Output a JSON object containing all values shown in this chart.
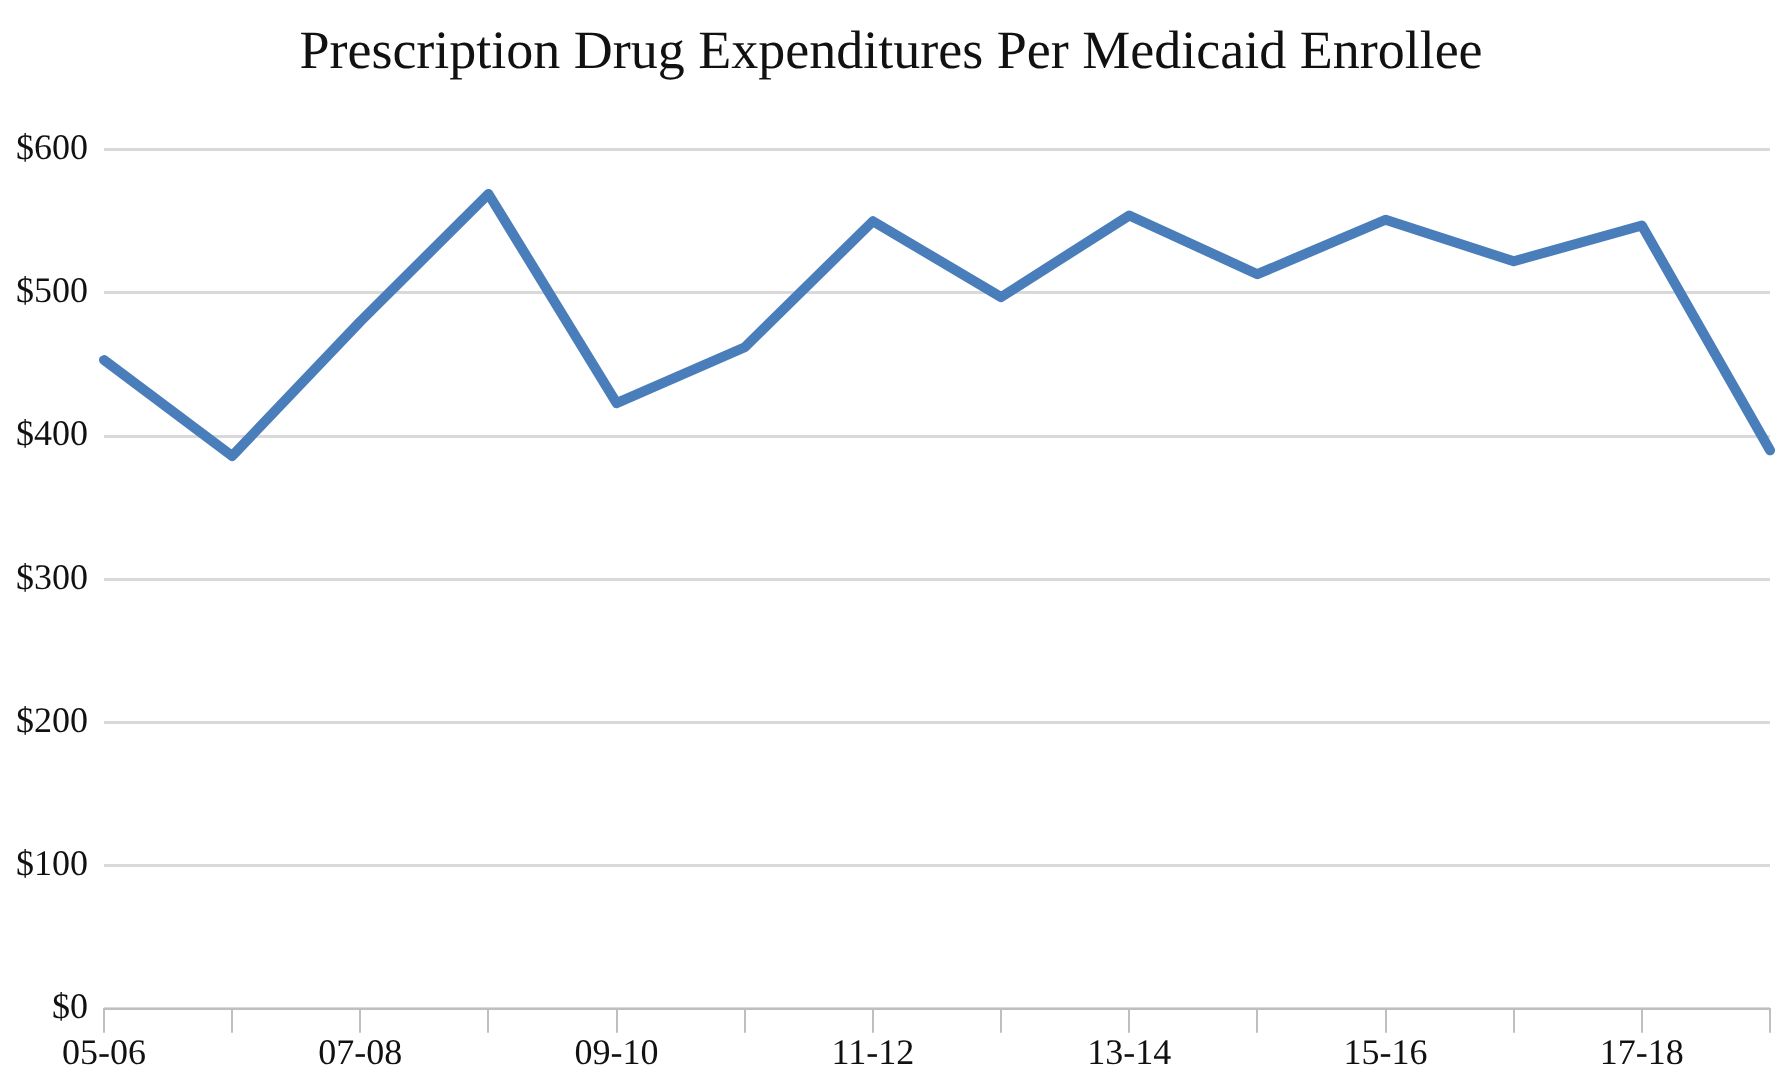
{
  "chart_data": {
    "type": "line",
    "title": "Prescription Drug Expenditures Per Medicaid Enrollee",
    "categories": [
      "05-06",
      null,
      "07-08",
      null,
      "09-10",
      null,
      "11-12",
      null,
      "13-14",
      null,
      "15-16",
      null,
      "17-18",
      null
    ],
    "series": [
      {
        "color": "#4a7ebb",
        "values": [
          453,
          386,
          480,
          569,
          423,
          462,
          550,
          497,
          554,
          513,
          551,
          522,
          547,
          390
        ]
      }
    ],
    "ylim": [
      0,
      600
    ],
    "yticks": [
      {
        "value": 0,
        "label": "$0"
      },
      {
        "value": 100,
        "label": "$100"
      },
      {
        "value": 200,
        "label": "$200"
      },
      {
        "value": 300,
        "label": "$300"
      },
      {
        "value": 400,
        "label": "$400"
      },
      {
        "value": 500,
        "label": "$500"
      },
      {
        "value": 600,
        "label": "$600"
      }
    ],
    "grid": "y",
    "legend": false,
    "marker": "none",
    "line_style": "solid"
  }
}
